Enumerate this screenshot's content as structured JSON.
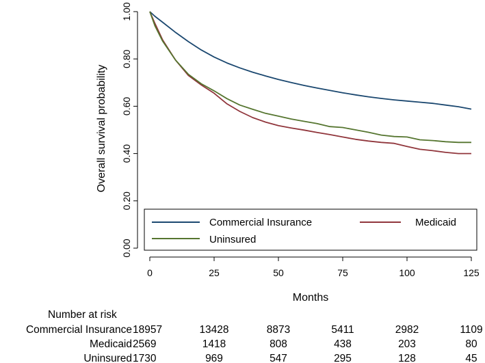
{
  "chart_data": {
    "type": "line",
    "title": "",
    "xlabel": "Months",
    "ylabel": "Overall survival probability",
    "xlim": [
      0,
      125
    ],
    "ylim": [
      0,
      1
    ],
    "xticks": [
      0,
      25,
      50,
      75,
      100,
      125
    ],
    "xtick_labels": [
      "0",
      "25",
      "50",
      "75",
      "100",
      "125"
    ],
    "yticks": [
      0,
      0.2,
      0.4,
      0.6,
      0.8,
      1.0
    ],
    "ytick_labels": [
      "0.00",
      "0.20",
      "0.40",
      "0.60",
      "0.80",
      "1.00"
    ],
    "grid": false,
    "legend_position": "bottom-inside",
    "series": [
      {
        "name": "Commercial Insurance",
        "legend_label": "Commercial Insurance",
        "color": "#1a476f",
        "x": [
          0,
          2,
          5,
          10,
          15,
          20,
          25,
          30,
          35,
          40,
          45,
          50,
          55,
          60,
          65,
          70,
          75,
          80,
          85,
          90,
          95,
          100,
          105,
          110,
          115,
          120,
          125
        ],
        "y": [
          1.0,
          0.98,
          0.955,
          0.912,
          0.873,
          0.838,
          0.808,
          0.783,
          0.762,
          0.744,
          0.728,
          0.713,
          0.7,
          0.688,
          0.677,
          0.667,
          0.657,
          0.648,
          0.64,
          0.633,
          0.627,
          0.622,
          0.617,
          0.612,
          0.605,
          0.598,
          0.588
        ]
      },
      {
        "name": "Medicaid",
        "legend_label": "Medicaid",
        "color": "#90353b",
        "x": [
          0,
          2,
          5,
          10,
          15,
          20,
          25,
          30,
          35,
          40,
          45,
          50,
          55,
          60,
          65,
          70,
          75,
          80,
          85,
          90,
          95,
          100,
          105,
          110,
          115,
          120,
          125
        ],
        "y": [
          1.0,
          0.95,
          0.88,
          0.795,
          0.73,
          0.69,
          0.655,
          0.61,
          0.578,
          0.552,
          0.533,
          0.518,
          0.508,
          0.499,
          0.489,
          0.48,
          0.47,
          0.46,
          0.453,
          0.447,
          0.443,
          0.43,
          0.418,
          0.412,
          0.405,
          0.4,
          0.4
        ]
      },
      {
        "name": "Uninsured",
        "legend_label": "Uninsured",
        "color": "#55752f",
        "x": [
          0,
          2,
          5,
          10,
          15,
          20,
          25,
          30,
          35,
          40,
          45,
          50,
          55,
          60,
          65,
          70,
          75,
          80,
          85,
          90,
          95,
          100,
          105,
          110,
          115,
          120,
          125
        ],
        "y": [
          1.0,
          0.94,
          0.875,
          0.795,
          0.735,
          0.695,
          0.665,
          0.632,
          0.605,
          0.587,
          0.57,
          0.558,
          0.546,
          0.536,
          0.527,
          0.514,
          0.51,
          0.5,
          0.49,
          0.478,
          0.472,
          0.47,
          0.458,
          0.455,
          0.45,
          0.447,
          0.447
        ]
      }
    ],
    "risk_table": {
      "header": "Number at risk",
      "timepoints": [
        0,
        25,
        50,
        75,
        100,
        125
      ],
      "rows": [
        {
          "label": "Commercial Insurance",
          "values": [
            "18957",
            "13428",
            "8873",
            "5411",
            "2982",
            "1109"
          ]
        },
        {
          "label": "Medicaid",
          "values": [
            "2569",
            "1418",
            "808",
            "438",
            "203",
            "80"
          ]
        },
        {
          "label": "Uninsured",
          "values": [
            "1730",
            "969",
            "547",
            "295",
            "128",
            "45"
          ]
        }
      ]
    }
  }
}
